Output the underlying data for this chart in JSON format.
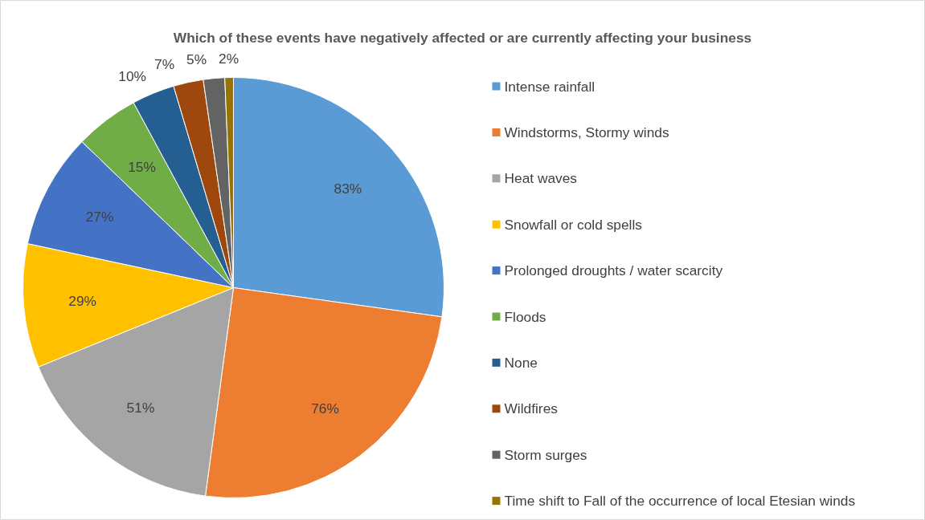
{
  "chart_data": {
    "type": "pie",
    "title": "Which of these events have negatively affected or are currently affecting your business",
    "categories": [
      "Intense rainfall",
      "Windstorms, Stormy winds",
      "Heat waves",
      "Snowfall or cold spells",
      "Prolonged droughts / water scarcity",
      "Floods",
      "None",
      "Wildfires",
      "Storm surges",
      "Time shift to Fall of the occurrence of local Etesian winds"
    ],
    "values": [
      83,
      76,
      51,
      29,
      27,
      15,
      10,
      7,
      5,
      2
    ],
    "value_labels": [
      "83%",
      "76%",
      "51%",
      "29%",
      "27%",
      "15%",
      "10%",
      "7%",
      "5%",
      "2%"
    ],
    "colors": [
      "#5b9bd5",
      "#ed7d31",
      "#a5a5a5",
      "#ffc000",
      "#4472c4",
      "#70ad47",
      "#255e91",
      "#9e480e",
      "#636363",
      "#997300"
    ],
    "legend": "right"
  }
}
